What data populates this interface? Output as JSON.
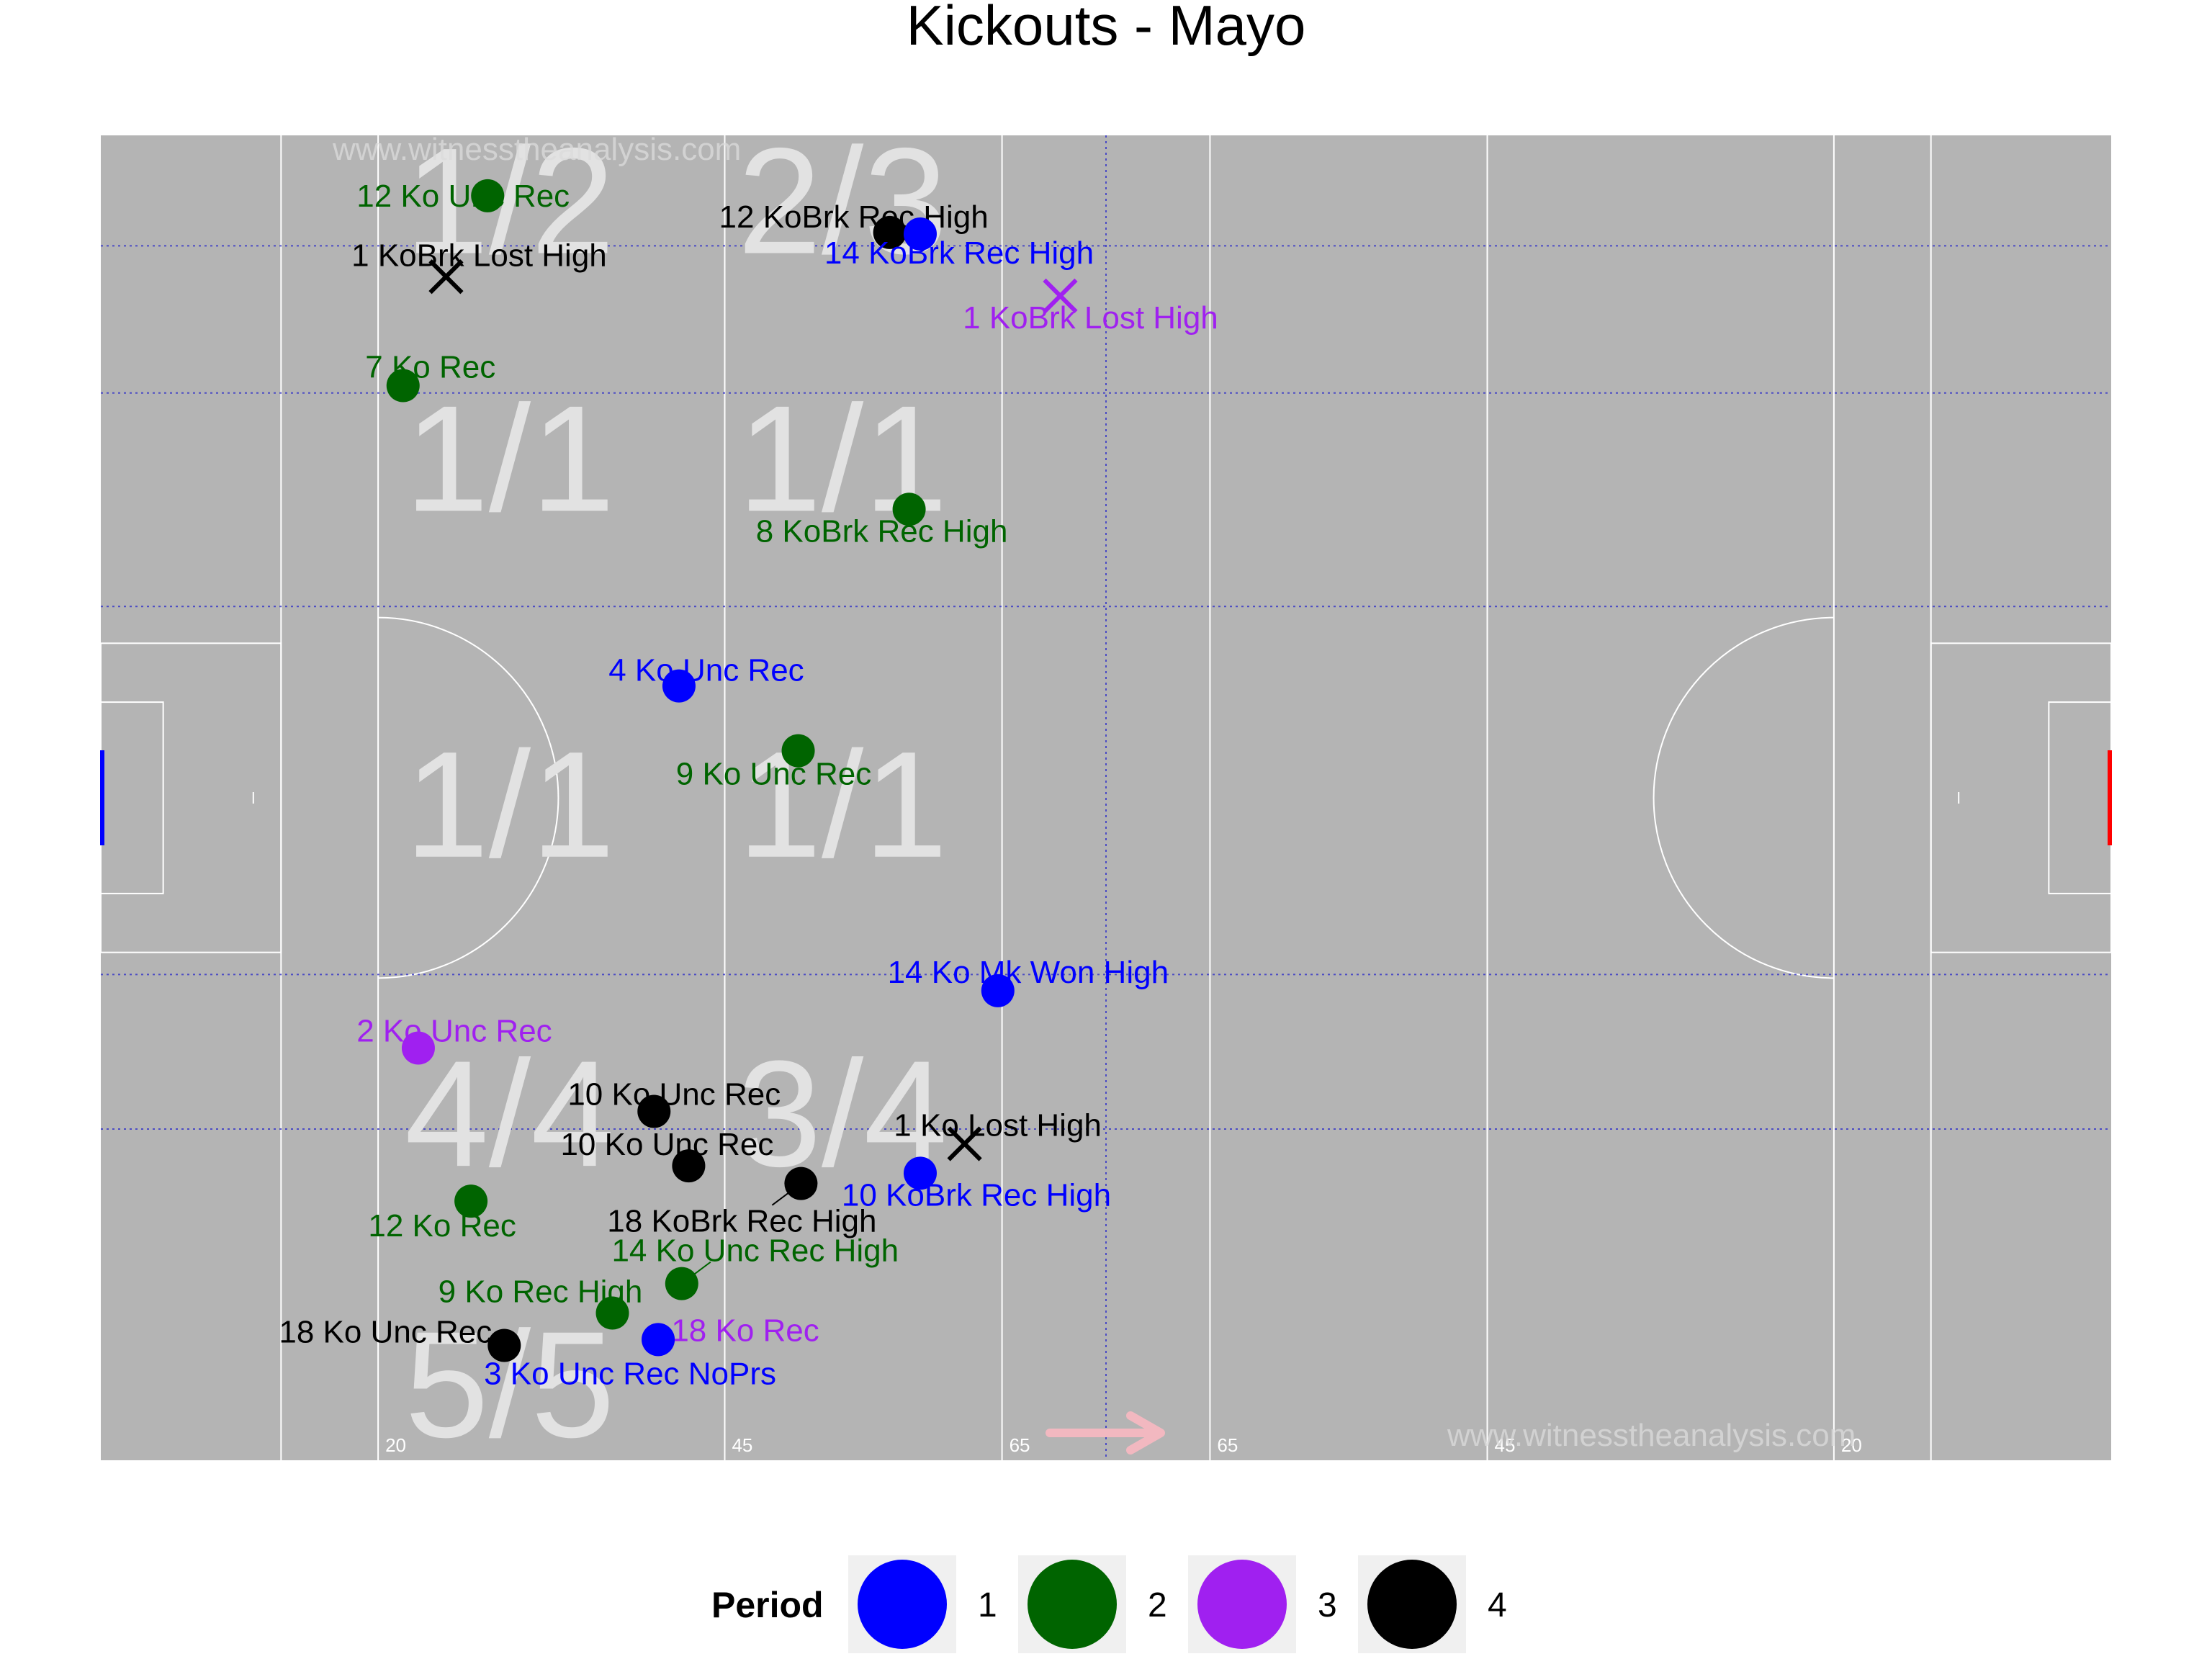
{
  "chart_data": {
    "type": "scatter",
    "title": "Kickouts - Mayo",
    "watermarks": [
      "www.witnesstheanalysis.com",
      "www.witnesstheanalysis.com"
    ],
    "distance_markers": [
      "20",
      "45",
      "65",
      "65",
      "45",
      "20"
    ],
    "zone_labels": [
      {
        "text": "1/2",
        "zone": "top-left-near"
      },
      {
        "text": "2/3",
        "zone": "top-left-far"
      },
      {
        "text": "1/1",
        "zone": "upper-left-near"
      },
      {
        "text": "1/1",
        "zone": "upper-left-far"
      },
      {
        "text": "1/1",
        "zone": "centre-left-near"
      },
      {
        "text": "1/1",
        "zone": "centre-left-far"
      },
      {
        "text": "4/4",
        "zone": "lower-left-near"
      },
      {
        "text": "3/4",
        "zone": "lower-left-far"
      },
      {
        "text": "5/5",
        "zone": "bottom-left-near"
      }
    ],
    "legend": {
      "title": "Period",
      "items": [
        {
          "label": "1",
          "color": "#0000ff"
        },
        {
          "label": "2",
          "color": "#006400"
        },
        {
          "label": "3",
          "color": "#a020f0"
        },
        {
          "label": "4",
          "color": "#000000"
        }
      ]
    },
    "pitch": {
      "length_m": 145,
      "width_m": 90,
      "direction": "left-to-right"
    },
    "points": [
      {
        "label": "12 Ko Unc Rec",
        "period": 2,
        "x": 27.9,
        "y": 85.9,
        "outcome": "won"
      },
      {
        "label": "1 KoBrk Lost High",
        "period": 4,
        "x": 24.9,
        "y": 80.4,
        "outcome": "lost"
      },
      {
        "label": "7 Ko Rec",
        "period": 2,
        "x": 21.8,
        "y": 73.0,
        "outcome": "won"
      },
      {
        "label": "12 KoBrk Rec High",
        "period": 4,
        "x": 56.9,
        "y": 83.4,
        "outcome": "won"
      },
      {
        "label": "14 KoBrk Rec High",
        "period": 1,
        "x": 59.1,
        "y": 83.3,
        "outcome": "won"
      },
      {
        "label": "1 KoBrk Lost High",
        "period": 3,
        "x": 69.2,
        "y": 79.1,
        "outcome": "lost"
      },
      {
        "label": "8 KoBrk Rec High",
        "period": 2,
        "x": 58.3,
        "y": 64.6,
        "outcome": "won"
      },
      {
        "label": "4 Ko Unc Rec",
        "period": 1,
        "x": 41.7,
        "y": 52.6,
        "outcome": "won"
      },
      {
        "label": "9 Ko Unc Rec",
        "period": 2,
        "x": 50.3,
        "y": 48.2,
        "outcome": "won"
      },
      {
        "label": "14 Ko Mk Won High",
        "period": 1,
        "x": 64.7,
        "y": 31.9,
        "outcome": "won"
      },
      {
        "label": "2 Ko Unc Rec",
        "period": 3,
        "x": 22.9,
        "y": 28.0,
        "outcome": "won"
      },
      {
        "label": "10 Ko Unc Rec",
        "period": 4,
        "x": 39.9,
        "y": 23.7,
        "outcome": "won"
      },
      {
        "label": "10 Ko Unc Rec",
        "period": 4,
        "x": 42.4,
        "y": 20.0,
        "outcome": "won"
      },
      {
        "label": "1 Ko Lost High",
        "period": 4,
        "x": 62.3,
        "y": 21.5,
        "outcome": "lost"
      },
      {
        "label": "10 KoBrk Rec High",
        "period": 1,
        "x": 59.1,
        "y": 19.5,
        "outcome": "won"
      },
      {
        "label": "18 KoBrk Rec High",
        "period": 4,
        "x": 50.5,
        "y": 18.8,
        "outcome": "won"
      },
      {
        "label": "12 Ko Rec",
        "period": 2,
        "x": 26.7,
        "y": 17.6,
        "outcome": "won"
      },
      {
        "label": "14 Ko Unc Rec High",
        "period": 2,
        "x": 41.9,
        "y": 12.0,
        "outcome": "won"
      },
      {
        "label": "9 Ko Rec High",
        "period": 2,
        "x": 36.9,
        "y": 10.0,
        "outcome": "won"
      },
      {
        "label": "18 Ko Unc Rec",
        "period": 4,
        "x": 29.1,
        "y": 7.8,
        "outcome": "won"
      },
      {
        "label": "18 Ko Rec",
        "period": 3,
        "x": 40.2,
        "y": 8.2,
        "outcome": "won"
      },
      {
        "label": "3 Ko Unc Rec NoPrs",
        "period": 1,
        "x": 40.2,
        "y": 8.2,
        "outcome": "won"
      }
    ]
  }
}
